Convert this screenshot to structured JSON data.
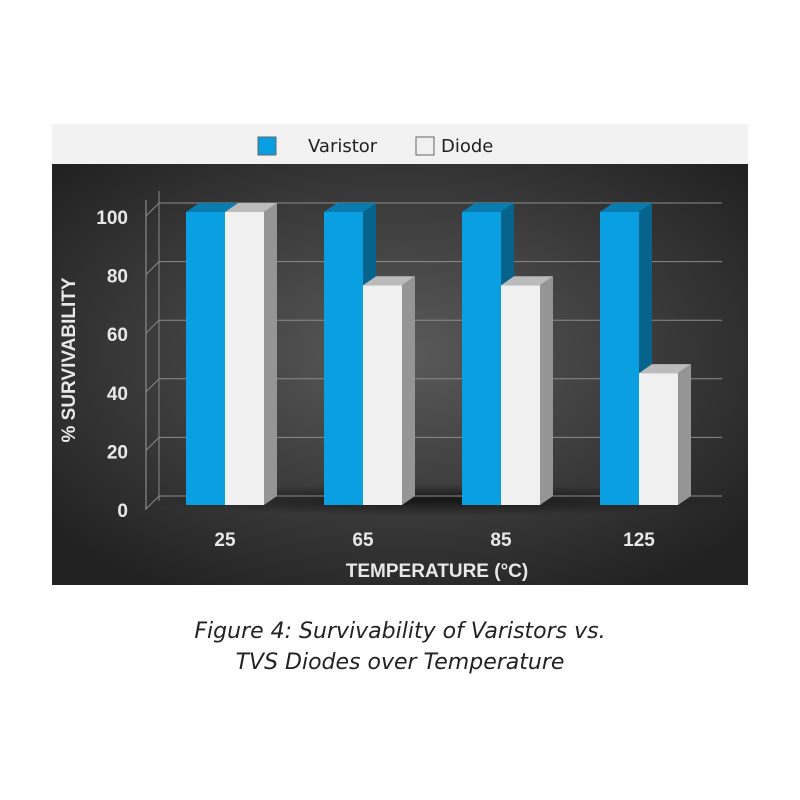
{
  "chart_data": {
    "type": "bar",
    "categories": [
      "25",
      "65",
      "85",
      "125"
    ],
    "series": [
      {
        "name": "Varistor",
        "color": "#0a9fe0",
        "values": [
          100,
          100,
          100,
          100
        ]
      },
      {
        "name": "Diode",
        "color": "#f0f0f0",
        "values": [
          100,
          75,
          75,
          45
        ]
      }
    ],
    "xlabel": "TEMPERATURE (°C)",
    "ylabel": "% SURVIVABILITY",
    "ylim": [
      0,
      100
    ],
    "yticks": [
      0,
      20,
      40,
      60,
      80,
      100
    ],
    "grid": true,
    "legend": "top"
  },
  "caption": [
    "Figure 4: Survivability of Varistors vs.",
    "TVS Diodes over Temperature"
  ]
}
